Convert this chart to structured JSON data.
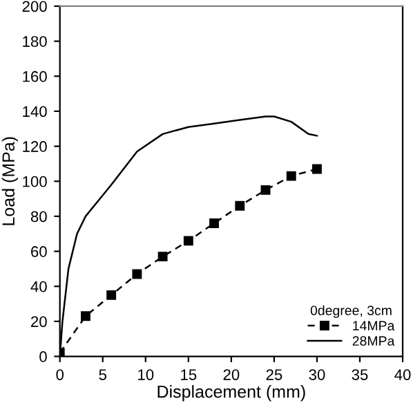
{
  "chart_data": {
    "type": "line",
    "xlabel": "Displacement (mm)",
    "ylabel": "Load (MPa)",
    "legend_title": "0degree, 3cm",
    "legend": "bottom right",
    "grid": false,
    "xlim": [
      0,
      40
    ],
    "xticks": [
      0,
      5,
      10,
      15,
      20,
      25,
      30,
      35,
      40
    ],
    "ylim": [
      0,
      200
    ],
    "yticks": [
      0,
      20,
      40,
      60,
      80,
      100,
      120,
      140,
      160,
      180,
      200
    ],
    "series": [
      {
        "name": "14MPa",
        "color": "#000000",
        "marker": "square",
        "line_style": "dashed",
        "x": [
          0,
          3,
          6,
          9,
          12,
          15,
          18,
          21,
          24,
          27,
          30
        ],
        "values": [
          2,
          23,
          35,
          47,
          57,
          66,
          76,
          86,
          95,
          103,
          107
        ]
      },
      {
        "name": "28MPa",
        "color": "#000000",
        "marker": "none",
        "line_style": "solid",
        "x": [
          0,
          0.3,
          1,
          2,
          3,
          5,
          6,
          9,
          12,
          15,
          18,
          21,
          24,
          25,
          27,
          29,
          30
        ],
        "values": [
          0,
          20,
          50,
          70,
          80,
          92,
          98,
          117,
          127,
          131,
          133,
          135,
          137,
          137,
          134,
          127,
          126
        ]
      }
    ]
  }
}
